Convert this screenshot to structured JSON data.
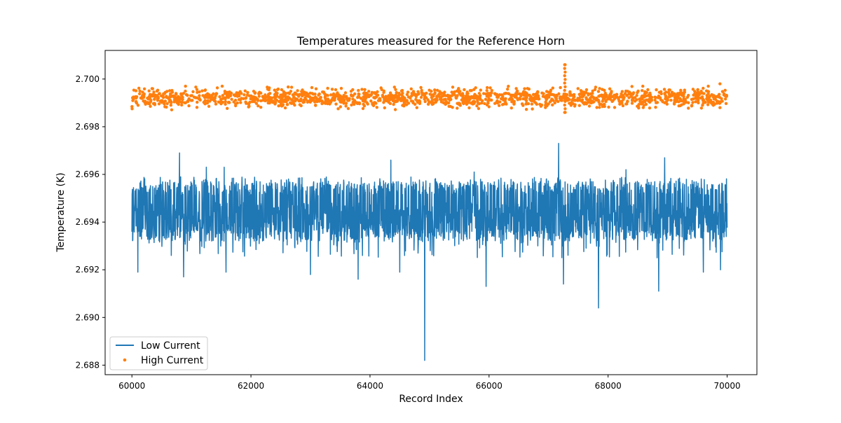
{
  "chart_data": {
    "type": "line",
    "title": "Temperatures measured for the Reference Horn",
    "xlabel": "Record Index",
    "ylabel": "Temperature (K)",
    "xlim": [
      59550,
      70500
    ],
    "ylim": [
      2.6876,
      2.7012
    ],
    "x_ticks": [
      60000,
      62000,
      64000,
      66000,
      68000,
      70000
    ],
    "y_ticks": [
      2.688,
      2.69,
      2.692,
      2.694,
      2.696,
      2.698,
      2.7
    ],
    "x_tick_labels": [
      "60000",
      "62000",
      "64000",
      "66000",
      "68000",
      "70000"
    ],
    "y_tick_labels": [
      "2.688",
      "2.690",
      "2.692",
      "2.694",
      "2.696",
      "2.698",
      "2.700"
    ],
    "grid": false,
    "legend_position": "lower-left",
    "series": [
      {
        "name": "Low Current",
        "style": "line",
        "color": "#1f77b4",
        "x_range": [
          60000,
          70000
        ],
        "mean": 2.6942,
        "band": [
          2.6932,
          2.6957
        ],
        "typical_min": 2.6925,
        "typical_max": 2.6959,
        "extremes": [
          {
            "x": 60100,
            "y": 2.6919
          },
          {
            "x": 60800,
            "y": 2.6969
          },
          {
            "x": 60870,
            "y": 2.6917
          },
          {
            "x": 61250,
            "y": 2.6963
          },
          {
            "x": 61550,
            "y": 2.6963
          },
          {
            "x": 61580,
            "y": 2.6919
          },
          {
            "x": 63000,
            "y": 2.6918
          },
          {
            "x": 63800,
            "y": 2.6916
          },
          {
            "x": 64350,
            "y": 2.6966
          },
          {
            "x": 64500,
            "y": 2.6919
          },
          {
            "x": 64920,
            "y": 2.6882
          },
          {
            "x": 65750,
            "y": 2.6961
          },
          {
            "x": 65950,
            "y": 2.6913
          },
          {
            "x": 67170,
            "y": 2.6973
          },
          {
            "x": 67250,
            "y": 2.6914
          },
          {
            "x": 67840,
            "y": 2.6904
          },
          {
            "x": 68300,
            "y": 2.6962
          },
          {
            "x": 68850,
            "y": 2.6911
          },
          {
            "x": 68950,
            "y": 2.6967
          },
          {
            "x": 69600,
            "y": 2.6919
          },
          {
            "x": 69890,
            "y": 2.692
          }
        ]
      },
      {
        "name": "High Current",
        "style": "scatter",
        "color": "#ff7f0e",
        "x_range": [
          60000,
          70000
        ],
        "mean": 2.6992,
        "band": [
          2.699,
          2.6995
        ],
        "typical_min": 2.6989,
        "typical_max": 2.6997,
        "extremes": [
          {
            "x": 67270,
            "y": 2.7006
          },
          {
            "x": 67280,
            "y": 2.6986
          },
          {
            "x": 60900,
            "y": 2.6997
          },
          {
            "x": 69880,
            "y": 2.6998
          },
          {
            "x": 62500,
            "y": 2.6989
          },
          {
            "x": 69880,
            "y": 2.6988
          }
        ]
      }
    ]
  }
}
